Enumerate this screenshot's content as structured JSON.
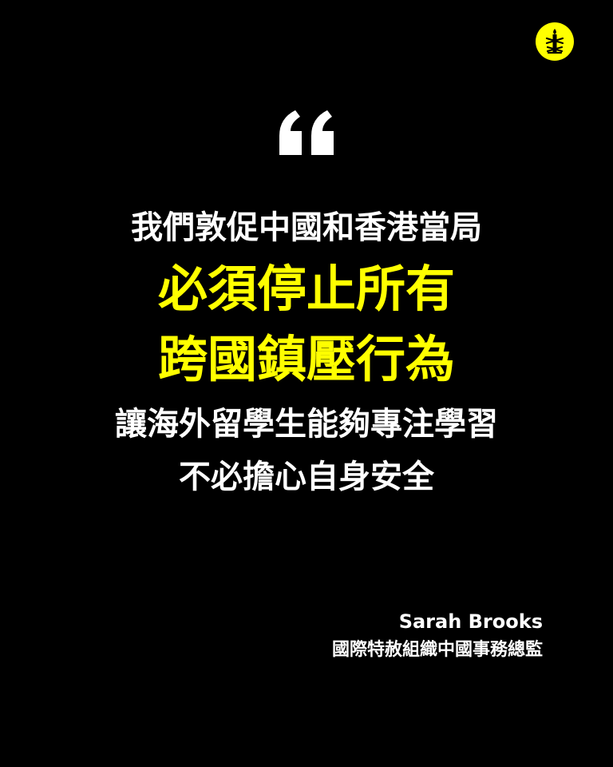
{
  "logo": {
    "icon": "candle-barbed-wire-icon",
    "color": "#ffff00"
  },
  "quote": {
    "open_mark": "“",
    "lines": [
      {
        "text": "我們敦促中國和香港當局",
        "color": "#ffffff"
      },
      {
        "text": "必須停止所有",
        "color": "#ffff00"
      },
      {
        "text": "跨國鎮壓行為",
        "color": "#ffff00"
      },
      {
        "text": "讓海外留學生能夠專注學習",
        "color": "#ffffff"
      },
      {
        "text": "不必擔心自身安全",
        "color": "#ffffff"
      }
    ]
  },
  "attribution": {
    "name": "Sarah Brooks",
    "title": "國際特赦組織中國事務總監"
  },
  "colors": {
    "background": "#000000",
    "text": "#ffffff",
    "accent": "#ffff00"
  }
}
